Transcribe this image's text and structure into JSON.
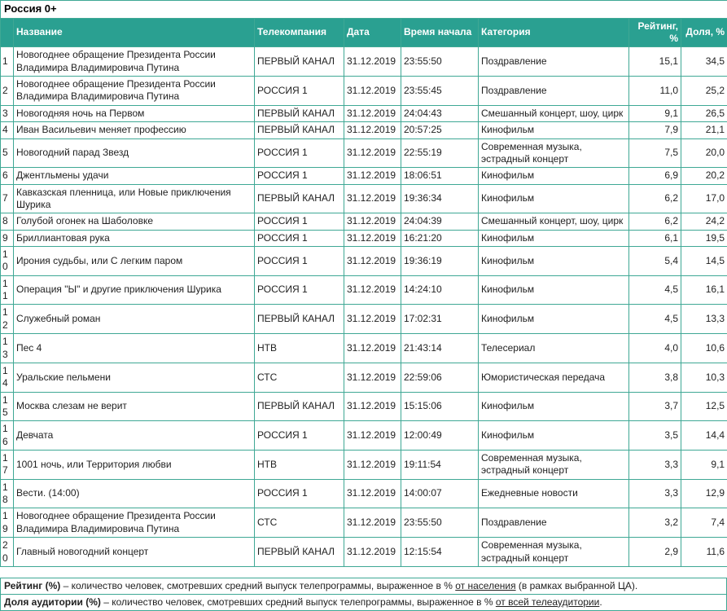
{
  "title": "Россия 0+",
  "colors": {
    "header_bg": "#2aa091",
    "header_text": "#ffffff",
    "border": "#3fa895",
    "text": "#1f1f1f"
  },
  "table": {
    "headers": [
      "",
      "Название",
      "Телекомпания",
      "Дата",
      "Время начала",
      "Категория",
      "Рейтинг, %",
      "Доля, %"
    ],
    "rows": [
      {
        "num": "1",
        "name": "Новогоднее обращение Президента России Владимира Владимировича Путина",
        "channel": "ПЕРВЫЙ КАНАЛ",
        "date": "31.12.2019",
        "time": "23:55:50",
        "category": "Поздравление",
        "rating": "15,1",
        "share": "34,5"
      },
      {
        "num": "2",
        "name": "Новогоднее обращение Президента России Владимира Владимировича Путина",
        "channel": "РОССИЯ 1",
        "date": "31.12.2019",
        "time": "23:55:45",
        "category": "Поздравление",
        "rating": "11,0",
        "share": "25,2"
      },
      {
        "num": "3",
        "name": "Новогодняя ночь на Первом",
        "channel": "ПЕРВЫЙ КАНАЛ",
        "date": "31.12.2019",
        "time": "24:04:43",
        "category": "Смешанный концерт, шоу, цирк",
        "rating": "9,1",
        "share": "26,5"
      },
      {
        "num": "4",
        "name": "Иван Васильевич меняет профессию",
        "channel": "ПЕРВЫЙ КАНАЛ",
        "date": "31.12.2019",
        "time": "20:57:25",
        "category": "Кинофильм",
        "rating": "7,9",
        "share": "21,1"
      },
      {
        "num": "5",
        "name": "Новогодний парад Звезд",
        "channel": "РОССИЯ 1",
        "date": "31.12.2019",
        "time": "22:55:19",
        "category": "Современная музыка, эстрадный концерт",
        "rating": "7,5",
        "share": "20,0"
      },
      {
        "num": "6",
        "name": "Джентльмены удачи",
        "channel": "РОССИЯ 1",
        "date": "31.12.2019",
        "time": "18:06:51",
        "category": "Кинофильм",
        "rating": "6,9",
        "share": "20,2"
      },
      {
        "num": "7",
        "name": "Кавказская пленница, или Новые приключения Шурика",
        "channel": "ПЕРВЫЙ КАНАЛ",
        "date": "31.12.2019",
        "time": "19:36:34",
        "category": "Кинофильм",
        "rating": "6,2",
        "share": "17,0"
      },
      {
        "num": "8",
        "name": "Голубой огонек на Шаболовке",
        "channel": "РОССИЯ 1",
        "date": "31.12.2019",
        "time": "24:04:39",
        "category": "Смешанный концерт, шоу, цирк",
        "rating": "6,2",
        "share": "24,2"
      },
      {
        "num": "9",
        "name": "Бриллиантовая рука",
        "channel": "РОССИЯ 1",
        "date": "31.12.2019",
        "time": "16:21:20",
        "category": "Кинофильм",
        "rating": "6,1",
        "share": "19,5"
      },
      {
        "num": "10",
        "name": "Ирония судьбы, или С легким паром",
        "channel": "РОССИЯ 1",
        "date": "31.12.2019",
        "time": "19:36:19",
        "category": "Кинофильм",
        "rating": "5,4",
        "share": "14,5"
      },
      {
        "num": "11",
        "name": "Операция \"Ы\" и другие приключения Шурика",
        "channel": "РОССИЯ 1",
        "date": "31.12.2019",
        "time": "14:24:10",
        "category": "Кинофильм",
        "rating": "4,5",
        "share": "16,1"
      },
      {
        "num": "12",
        "name": "Служебный роман",
        "channel": "ПЕРВЫЙ КАНАЛ",
        "date": "31.12.2019",
        "time": "17:02:31",
        "category": "Кинофильм",
        "rating": "4,5",
        "share": "13,3"
      },
      {
        "num": "13",
        "name": "Пес 4",
        "channel": "НТВ",
        "date": "31.12.2019",
        "time": "21:43:14",
        "category": "Телесериал",
        "rating": "4,0",
        "share": "10,6"
      },
      {
        "num": "14",
        "name": "Уральские пельмени",
        "channel": "СТС",
        "date": "31.12.2019",
        "time": "22:59:06",
        "category": "Юмористическая передача",
        "rating": "3,8",
        "share": "10,3"
      },
      {
        "num": "15",
        "name": "Москва слезам не верит",
        "channel": "ПЕРВЫЙ КАНАЛ",
        "date": "31.12.2019",
        "time": "15:15:06",
        "category": "Кинофильм",
        "rating": "3,7",
        "share": "12,5"
      },
      {
        "num": "16",
        "name": "Девчата",
        "channel": "РОССИЯ 1",
        "date": "31.12.2019",
        "time": "12:00:49",
        "category": "Кинофильм",
        "rating": "3,5",
        "share": "14,4"
      },
      {
        "num": "17",
        "name": "1001 ночь, или Территория любви",
        "channel": "НТВ",
        "date": "31.12.2019",
        "time": "19:11:54",
        "category": "Современная музыка, эстрадный концерт",
        "rating": "3,3",
        "share": "9,1"
      },
      {
        "num": "18",
        "name": "Вести. (14:00)",
        "channel": "РОССИЯ 1",
        "date": "31.12.2019",
        "time": "14:00:07",
        "category": "Ежедневные новости",
        "rating": "3,3",
        "share": "12,9"
      },
      {
        "num": "19",
        "name": "Новогоднее обращение Президента России Владимира Владимировича Путина",
        "channel": "СТС",
        "date": "31.12.2019",
        "time": "23:55:50",
        "category": "Поздравление",
        "rating": "3,2",
        "share": "7,4"
      },
      {
        "num": "20",
        "name": "Главный новогодний концерт",
        "channel": "ПЕРВЫЙ КАНАЛ",
        "date": "31.12.2019",
        "time": "12:15:54",
        "category": "Современная музыка, эстрадный концерт",
        "rating": "2,9",
        "share": "11,6"
      }
    ]
  },
  "notes": [
    {
      "parts": [
        {
          "text": "Рейтинг (%)",
          "style": "bold"
        },
        {
          "text": " – количество человек, смотревших средний выпуск телепрограммы, выраженное в % ",
          "style": "normal"
        },
        {
          "text": "от населения",
          "style": "underline"
        },
        {
          "text": " (в рамках выбранной ЦА).",
          "style": "normal"
        }
      ]
    },
    {
      "parts": [
        {
          "text": "Доля аудитории (%)",
          "style": "bold"
        },
        {
          "text": " – количество человек, смотревших средний выпуск телепрограммы, выраженное в % ",
          "style": "normal"
        },
        {
          "text": "от всей телеаудитории",
          "style": "underline"
        },
        {
          "text": ".",
          "style": "normal"
        }
      ]
    }
  ]
}
